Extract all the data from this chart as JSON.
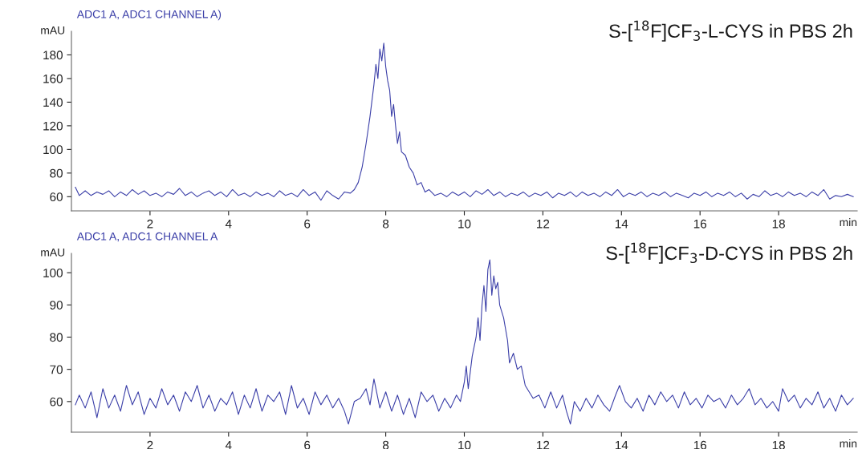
{
  "chart_data": [
    {
      "type": "line",
      "title": "S-[$^{18}$F]CF$_{3}$-L-CYS in PBS 2h",
      "xlabel": "min",
      "ylabel": "mAU",
      "annotations": [
        "ADC1 A, ADC1 CHANNEL A)"
      ],
      "x": [
        0.1,
        0.2,
        0.35,
        0.5,
        0.65,
        0.8,
        0.95,
        1.1,
        1.25,
        1.4,
        1.55,
        1.7,
        1.85,
        2.0,
        2.15,
        2.3,
        2.45,
        2.6,
        2.75,
        2.9,
        3.05,
        3.2,
        3.35,
        3.5,
        3.65,
        3.8,
        3.95,
        4.1,
        4.25,
        4.4,
        4.55,
        4.7,
        4.85,
        5.0,
        5.15,
        5.3,
        5.45,
        5.6,
        5.75,
        5.9,
        6.05,
        6.2,
        6.35,
        6.5,
        6.65,
        6.8,
        6.95,
        7.1,
        7.2,
        7.3,
        7.4,
        7.5,
        7.6,
        7.7,
        7.75,
        7.8,
        7.85,
        7.9,
        7.95,
        8.0,
        8.05,
        8.1,
        8.15,
        8.2,
        8.25,
        8.3,
        8.35,
        8.4,
        8.5,
        8.6,
        8.7,
        8.8,
        8.9,
        9.0,
        9.1,
        9.25,
        9.4,
        9.55,
        9.7,
        9.85,
        10.0,
        10.15,
        10.3,
        10.45,
        10.6,
        10.75,
        10.9,
        11.05,
        11.2,
        11.35,
        11.5,
        11.65,
        11.8,
        11.95,
        12.1,
        12.25,
        12.4,
        12.55,
        12.7,
        12.85,
        13.0,
        13.15,
        13.3,
        13.45,
        13.6,
        13.75,
        13.9,
        14.05,
        14.2,
        14.35,
        14.5,
        14.65,
        14.8,
        14.95,
        15.1,
        15.25,
        15.4,
        15.55,
        15.7,
        15.85,
        16.0,
        16.15,
        16.3,
        16.45,
        16.6,
        16.75,
        16.9,
        17.05,
        17.2,
        17.35,
        17.5,
        17.65,
        17.8,
        17.95,
        18.1,
        18.25,
        18.4,
        18.55,
        18.7,
        18.85,
        19.0,
        19.15,
        19.3,
        19.45,
        19.6,
        19.75,
        19.9
      ],
      "series": [
        {
          "color": "#3b3fa8",
          "values": [
            68,
            61,
            65,
            61,
            64,
            62,
            65,
            60,
            64,
            61,
            66,
            62,
            65,
            61,
            63,
            60,
            64,
            62,
            67,
            61,
            64,
            60,
            63,
            65,
            61,
            64,
            60,
            66,
            61,
            63,
            60,
            64,
            61,
            63,
            60,
            65,
            61,
            63,
            60,
            66,
            61,
            64,
            57,
            65,
            61,
            58,
            64,
            63,
            66,
            72,
            85,
            105,
            128,
            155,
            172,
            160,
            185,
            175,
            190,
            170,
            158,
            150,
            128,
            138,
            120,
            105,
            115,
            98,
            95,
            85,
            80,
            70,
            72,
            64,
            66,
            61,
            63,
            60,
            64,
            61,
            64,
            60,
            65,
            62,
            66,
            61,
            64,
            60,
            63,
            61,
            64,
            60,
            63,
            61,
            64,
            59,
            63,
            61,
            64,
            60,
            64,
            61,
            63,
            60,
            64,
            61,
            66,
            60,
            63,
            61,
            64,
            60,
            63,
            61,
            64,
            60,
            63,
            61,
            59,
            63,
            61,
            64,
            60,
            63,
            61,
            64,
            60,
            63,
            58,
            62,
            60,
            65,
            61,
            63,
            60,
            64,
            61,
            63,
            60,
            64,
            61,
            66,
            58,
            61,
            60,
            62,
            60
          ]
        }
      ],
      "xlim": [
        0,
        20
      ],
      "ylim": [
        48,
        200
      ],
      "xticks": [
        2,
        4,
        6,
        8,
        10,
        12,
        14,
        16,
        18
      ],
      "yticks": [
        60,
        80,
        100,
        120,
        140,
        160,
        180
      ]
    },
    {
      "type": "line",
      "title": "S-[$^{18}$F]CF$_{3}$-D-CYS in PBS 2h",
      "xlabel": "min",
      "ylabel": "mAU",
      "annotations": [
        "ADC1 A, ADC1 CHANNEL A"
      ],
      "x": [
        0.1,
        0.2,
        0.35,
        0.5,
        0.65,
        0.8,
        0.95,
        1.1,
        1.25,
        1.4,
        1.55,
        1.7,
        1.85,
        2.0,
        2.15,
        2.3,
        2.45,
        2.6,
        2.75,
        2.9,
        3.05,
        3.2,
        3.35,
        3.5,
        3.65,
        3.8,
        3.95,
        4.1,
        4.25,
        4.4,
        4.55,
        4.7,
        4.85,
        5.0,
        5.15,
        5.3,
        5.45,
        5.6,
        5.75,
        5.9,
        6.05,
        6.2,
        6.35,
        6.5,
        6.65,
        6.8,
        6.95,
        7.05,
        7.2,
        7.35,
        7.5,
        7.6,
        7.7,
        7.85,
        8.0,
        8.15,
        8.3,
        8.45,
        8.6,
        8.75,
        8.9,
        9.05,
        9.2,
        9.35,
        9.5,
        9.65,
        9.8,
        9.9,
        10.0,
        10.05,
        10.1,
        10.2,
        10.3,
        10.35,
        10.4,
        10.45,
        10.5,
        10.55,
        10.6,
        10.65,
        10.7,
        10.75,
        10.8,
        10.85,
        10.9,
        11.0,
        11.1,
        11.15,
        11.25,
        11.35,
        11.45,
        11.55,
        11.65,
        11.75,
        11.9,
        12.05,
        12.2,
        12.35,
        12.5,
        12.6,
        12.7,
        12.8,
        12.95,
        13.1,
        13.25,
        13.4,
        13.55,
        13.7,
        13.85,
        13.95,
        14.1,
        14.25,
        14.4,
        14.55,
        14.7,
        14.85,
        15.0,
        15.15,
        15.3,
        15.45,
        15.6,
        15.75,
        15.9,
        16.05,
        16.2,
        16.35,
        16.5,
        16.65,
        16.8,
        16.95,
        17.1,
        17.25,
        17.4,
        17.55,
        17.7,
        17.85,
        18.0,
        18.1,
        18.25,
        18.4,
        18.55,
        18.7,
        18.85,
        19.0,
        19.15,
        19.3,
        19.45,
        19.6,
        19.75,
        19.9
      ],
      "series": [
        {
          "color": "#3b3fa8",
          "values": [
            59,
            62,
            58,
            63,
            55,
            64,
            58,
            62,
            57,
            65,
            59,
            63,
            56,
            61,
            58,
            64,
            59,
            62,
            57,
            63,
            60,
            65,
            58,
            62,
            57,
            61,
            59,
            63,
            56,
            62,
            58,
            64,
            57,
            62,
            60,
            63,
            56,
            65,
            58,
            61,
            56,
            63,
            59,
            62,
            58,
            61,
            57,
            53,
            60,
            61,
            64,
            59,
            67,
            58,
            63,
            57,
            62,
            56,
            61,
            55,
            63,
            60,
            62,
            57,
            61,
            58,
            62,
            60,
            66,
            71,
            64,
            74,
            80,
            86,
            79,
            90,
            96,
            88,
            101,
            104,
            93,
            99,
            95,
            97,
            90,
            86,
            79,
            72,
            75,
            70,
            71,
            65,
            63,
            61,
            62,
            58,
            63,
            58,
            62,
            57,
            53,
            60,
            57,
            61,
            58,
            62,
            59,
            57,
            62,
            65,
            60,
            58,
            61,
            57,
            62,
            59,
            63,
            60,
            62,
            58,
            63,
            59,
            61,
            58,
            62,
            60,
            61,
            58,
            62,
            59,
            61,
            64,
            59,
            61,
            58,
            60,
            57,
            64,
            60,
            62,
            58,
            61,
            59,
            63,
            58,
            61,
            57,
            62,
            59,
            61
          ]
        }
      ],
      "xlim": [
        0,
        20
      ],
      "ylim": [
        50.5,
        106
      ],
      "xticks": [
        2,
        4,
        6,
        8,
        10,
        12,
        14,
        16,
        18
      ],
      "yticks": [
        60,
        70,
        80,
        90,
        100
      ]
    }
  ]
}
